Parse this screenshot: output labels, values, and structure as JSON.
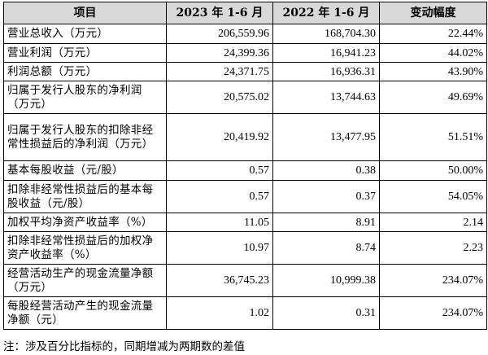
{
  "table": {
    "headers": [
      "项目",
      "2023 年 1-6 月",
      "2022 年 1-6 月",
      "变动幅度"
    ],
    "rows": [
      {
        "item": "营业总收入（万元）",
        "y2023": "206,559.96",
        "y2022": "168,704.30",
        "change": "22.44%"
      },
      {
        "item": "营业利润（万元）",
        "y2023": "24,399.36",
        "y2022": "16,941.23",
        "change": "44.02%"
      },
      {
        "item": "利润总额（万元）",
        "y2023": "24,371.75",
        "y2022": "16,936.31",
        "change": "43.90%"
      },
      {
        "item": "归属于发行人股东的净利润（万元）",
        "y2023": "20,575.02",
        "y2022": "13,744.63",
        "change": "49.69%"
      },
      {
        "item": "归属于发行人股东的扣除非经常性损益后的净利润（万元）",
        "y2023": "20,419.92",
        "y2022": "13,477.95",
        "change": "51.51%"
      },
      {
        "item": "基本每股收益（元/股）",
        "y2023": "0.57",
        "y2022": "0.38",
        "change": "50.00%"
      },
      {
        "item": "扣除非经常性损益后的基本每股收益（元/股）",
        "y2023": "0.57",
        "y2022": "0.37",
        "change": "54.05%"
      },
      {
        "item": "加权平均净资产收益率（%）",
        "y2023": "11.05",
        "y2022": "8.91",
        "change": "2.14"
      },
      {
        "item": "扣除非经常性损益后的加权净资产收益率（%）",
        "y2023": "10.97",
        "y2022": "8.74",
        "change": "2.23"
      },
      {
        "item": "经营活动生产的现金流量净额（万元）",
        "y2023": "36,745.23",
        "y2022": "10,999.38",
        "change": "234.07%"
      },
      {
        "item": "每股经营活动产生的现金流量净额（元）",
        "y2023": "1.02",
        "y2022": "0.31",
        "change": "234.07%"
      }
    ]
  },
  "note": "注：涉及百分比指标的，同期增减为两期数的差值"
}
